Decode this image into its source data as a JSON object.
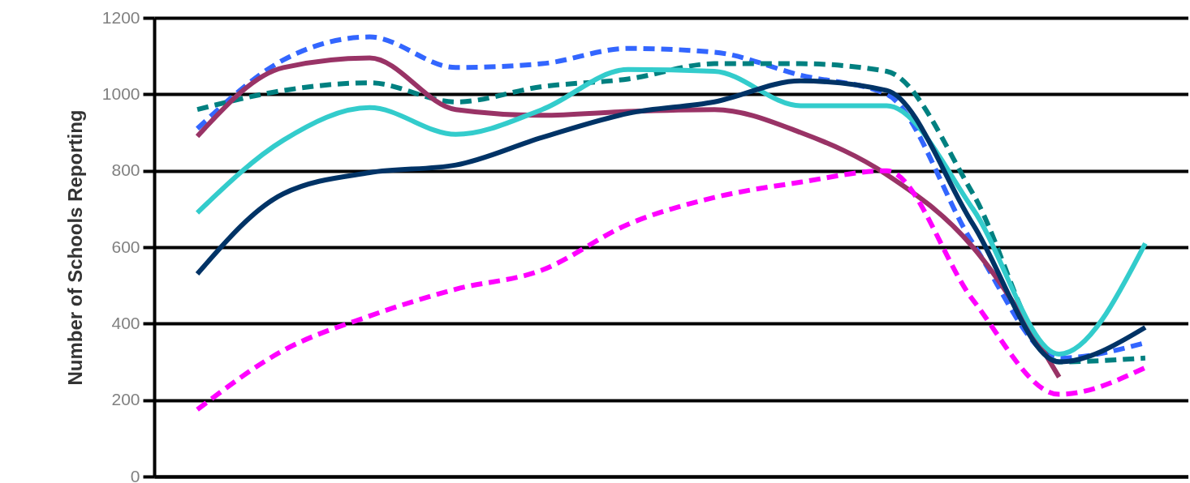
{
  "chart_data": {
    "type": "line",
    "ylabel": "Number of Schools Reporting",
    "categories": [
      null,
      null,
      null,
      null,
      null,
      null,
      null,
      null,
      null,
      null,
      null,
      null
    ],
    "ylim": [
      0,
      1200
    ],
    "yticks": [
      0,
      200,
      400,
      600,
      800,
      1000,
      1200
    ],
    "grid": "y",
    "legend": false,
    "marker": "none",
    "tick_labels": "y",
    "series": [
      {
        "color": "#3366ff",
        "line_style": "dashed",
        "values": [
          910,
          1090,
          1150,
          1070,
          1080,
          1120,
          1110,
          1050,
          1000,
          610,
          310,
          350
        ]
      },
      {
        "color": "#008080",
        "line_style": "dashed",
        "values": [
          960,
          1010,
          1030,
          980,
          1020,
          1040,
          1080,
          1080,
          1060,
          740,
          300,
          310
        ]
      },
      {
        "color": "#993366",
        "line_style": "solid",
        "values": [
          890,
          1070,
          1095,
          960,
          945,
          955,
          960,
          900,
          790,
          600,
          260,
          null
        ]
      },
      {
        "color": "#33cccc",
        "line_style": "solid",
        "values": [
          690,
          880,
          965,
          895,
          960,
          1065,
          1060,
          970,
          970,
          700,
          320,
          610
        ]
      },
      {
        "color": "#003366",
        "line_style": "solid",
        "values": [
          530,
          740,
          795,
          815,
          887,
          950,
          980,
          1035,
          1010,
          660,
          300,
          390
        ]
      },
      {
        "color": "#ff00ff",
        "line_style": "dashed",
        "values": [
          175,
          330,
          420,
          490,
          540,
          660,
          730,
          770,
          800,
          462,
          215,
          285
        ]
      }
    ]
  }
}
